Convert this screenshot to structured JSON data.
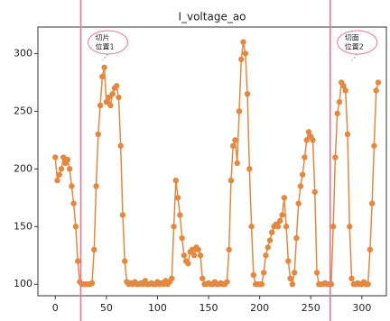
{
  "chart_data": {
    "type": "line",
    "title": "I_voltage_ao",
    "x": [
      0,
      2,
      4,
      6,
      8,
      10,
      12,
      14,
      16,
      18,
      20,
      22,
      24,
      26,
      28,
      30,
      32,
      34,
      36,
      38,
      40,
      42,
      44,
      46,
      48,
      50,
      52,
      54,
      56,
      58,
      60,
      62,
      64,
      66,
      68,
      70,
      72,
      74,
      76,
      78,
      80,
      82,
      84,
      86,
      88,
      90,
      92,
      94,
      96,
      98,
      100,
      102,
      104,
      106,
      108,
      110,
      112,
      114,
      116,
      118,
      120,
      122,
      124,
      126,
      128,
      130,
      132,
      134,
      136,
      138,
      140,
      142,
      144,
      146,
      148,
      150,
      152,
      154,
      156,
      158,
      160,
      162,
      164,
      166,
      168,
      170,
      172,
      174,
      176,
      178,
      180,
      182,
      184,
      186,
      188,
      190,
      192,
      194,
      196,
      198,
      200,
      202,
      204,
      206,
      208,
      210,
      212,
      214,
      216,
      218,
      220,
      222,
      224,
      226,
      228,
      230,
      232,
      234,
      236,
      238,
      240,
      242,
      244,
      246,
      248,
      250,
      252,
      254,
      256,
      258,
      260,
      262,
      264,
      266,
      268,
      270,
      272,
      274,
      276,
      278,
      280,
      282,
      284,
      286,
      288,
      290,
      292,
      294,
      296,
      298,
      300,
      302,
      304,
      306,
      308,
      310,
      312,
      314,
      316
    ],
    "values": [
      210,
      190,
      195,
      200,
      210,
      205,
      208,
      200,
      185,
      170,
      150,
      120,
      102,
      100,
      100,
      100,
      100,
      100,
      101,
      130,
      185,
      230,
      255,
      280,
      288,
      258,
      262,
      255,
      265,
      270,
      272,
      262,
      220,
      160,
      120,
      102,
      100,
      101,
      100,
      102,
      100,
      100,
      101,
      100,
      103,
      100,
      100,
      101,
      100,
      100,
      102,
      100,
      101,
      100,
      103,
      100,
      102,
      105,
      150,
      190,
      175,
      160,
      140,
      125,
      120,
      118,
      128,
      130,
      125,
      132,
      130,
      125,
      105,
      100,
      100,
      101,
      100,
      100,
      102,
      100,
      100,
      101,
      100,
      100,
      102,
      130,
      190,
      220,
      225,
      205,
      250,
      295,
      310,
      300,
      265,
      200,
      150,
      108,
      100,
      100,
      100,
      100,
      110,
      125,
      132,
      138,
      145,
      150,
      152,
      150,
      155,
      160,
      175,
      150,
      120,
      105,
      100,
      110,
      140,
      170,
      185,
      195,
      210,
      225,
      232,
      228,
      225,
      180,
      110,
      100,
      100,
      100,
      101,
      100,
      100,
      100,
      150,
      210,
      248,
      258,
      275,
      272,
      268,
      230,
      150,
      105,
      100,
      100,
      101,
      100,
      100,
      102,
      100,
      100,
      130,
      170,
      220,
      268,
      275
    ],
    "color": "#e5883f",
    "vlines": [
      25,
      269
    ],
    "vline_color": "#e8778f",
    "annotations": [
      [
        "切片",
        "位置1"
      ],
      [
        "切面",
        "位置2"
      ]
    ],
    "xlim": [
      -17,
      324
    ],
    "ylim": [
      90,
      323
    ],
    "xticks": [
      0,
      50,
      100,
      150,
      200,
      250,
      300
    ],
    "yticks": [
      100,
      150,
      200,
      250,
      300
    ]
  }
}
